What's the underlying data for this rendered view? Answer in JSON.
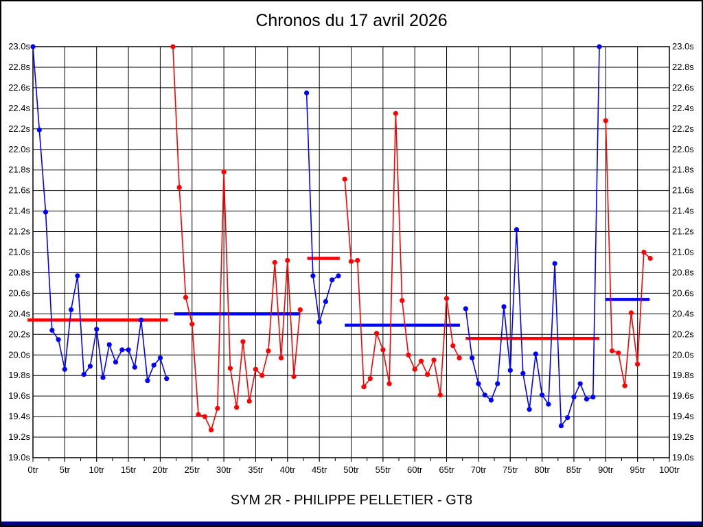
{
  "title": "Chronos du 17 avril 2026",
  "footer": "SYM 2R - PHILIPPE PELLETIER - GT8",
  "colors": {
    "blue_series": "#0000ff",
    "red_series": "#ff0000",
    "grid": "#000000",
    "text": "#000000",
    "bottom_bar": "#000080",
    "background": "#ffffff"
  },
  "chart_data": {
    "type": "line",
    "title": "Chronos du 17 avril 2026",
    "x_unit": "tr",
    "y_unit": "s",
    "xlim": [
      0,
      100
    ],
    "ylim": [
      19.0,
      23.0
    ],
    "grid": true,
    "x_tick_step": 5,
    "x_minor_tick_step": 2.5,
    "y_tick_step": 0.2,
    "x_tick_labels": [
      "0tr",
      "5tr",
      "10tr",
      "15tr",
      "20tr",
      "25tr",
      "30tr",
      "35tr",
      "40tr",
      "45tr",
      "50tr",
      "55tr",
      "60tr",
      "65tr",
      "70tr",
      "75tr",
      "80tr",
      "85tr",
      "90tr",
      "95tr",
      "100tr"
    ],
    "y_tick_labels": [
      "23.0s",
      "22.8s",
      "22.6s",
      "22.4s",
      "22.2s",
      "22.0s",
      "21.8s",
      "21.6s",
      "21.4s",
      "21.2s",
      "21.0s",
      "20.8s",
      "20.6s",
      "20.4s",
      "20.2s",
      "20.0s",
      "19.8s",
      "19.6s",
      "19.4s",
      "19.2s",
      "19.0s"
    ],
    "y_axis_sides": [
      "left",
      "right"
    ],
    "series": [
      {
        "name": "session-1-blue",
        "color": "#0000ff",
        "points": [
          [
            0,
            23.0
          ],
          [
            1,
            22.19
          ],
          [
            2,
            21.39
          ],
          [
            3,
            20.24
          ],
          [
            4,
            20.15
          ],
          [
            5,
            19.86
          ],
          [
            6,
            20.44
          ],
          [
            7,
            20.77
          ],
          [
            8,
            19.81
          ],
          [
            9,
            19.89
          ],
          [
            10,
            20.25
          ],
          [
            11,
            19.78
          ],
          [
            12,
            20.1
          ],
          [
            13,
            19.93
          ],
          [
            14,
            20.05
          ],
          [
            15,
            20.05
          ],
          [
            16,
            19.88
          ],
          [
            17,
            20.34
          ],
          [
            18,
            19.75
          ],
          [
            19,
            19.9
          ],
          [
            20,
            19.97
          ],
          [
            21,
            19.77
          ]
        ]
      },
      {
        "name": "session-2-red",
        "color": "#ff0000",
        "points": [
          [
            22,
            23.0
          ],
          [
            23,
            21.63
          ],
          [
            24,
            20.56
          ],
          [
            25,
            20.3
          ],
          [
            26,
            19.42
          ],
          [
            27,
            19.4
          ],
          [
            28,
            19.27
          ],
          [
            29,
            19.48
          ],
          [
            30,
            21.78
          ],
          [
            31,
            19.87
          ],
          [
            32,
            19.49
          ],
          [
            33,
            20.13
          ],
          [
            34,
            19.55
          ],
          [
            35,
            19.86
          ],
          [
            36,
            19.8
          ],
          [
            37,
            20.04
          ],
          [
            38,
            20.9
          ],
          [
            39,
            19.97
          ],
          [
            40,
            20.92
          ],
          [
            41,
            19.79
          ],
          [
            42,
            20.44
          ]
        ]
      },
      {
        "name": "session-3-blue",
        "color": "#0000ff",
        "points": [
          [
            43,
            22.55
          ],
          [
            44,
            20.77
          ],
          [
            45,
            20.32
          ],
          [
            46,
            20.52
          ],
          [
            47,
            20.73
          ],
          [
            48,
            20.77
          ]
        ]
      },
      {
        "name": "session-4-red",
        "color": "#ff0000",
        "points": [
          [
            49,
            21.71
          ],
          [
            50,
            20.91
          ],
          [
            51,
            20.92
          ],
          [
            52,
            19.69
          ],
          [
            53,
            19.77
          ],
          [
            54,
            20.21
          ],
          [
            55,
            20.05
          ],
          [
            56,
            19.72
          ],
          [
            57,
            22.35
          ],
          [
            58,
            20.53
          ],
          [
            59,
            20.0
          ],
          [
            60,
            19.86
          ],
          [
            61,
            19.94
          ],
          [
            62,
            19.81
          ],
          [
            63,
            19.95
          ],
          [
            64,
            19.61
          ],
          [
            65,
            20.55
          ],
          [
            66,
            20.09
          ],
          [
            67,
            19.97
          ]
        ]
      },
      {
        "name": "session-5-blue",
        "color": "#0000ff",
        "points": [
          [
            68,
            20.45
          ],
          [
            69,
            19.97
          ],
          [
            70,
            19.72
          ],
          [
            71,
            19.61
          ],
          [
            72,
            19.56
          ],
          [
            73,
            19.72
          ],
          [
            74,
            20.47
          ],
          [
            75,
            19.85
          ],
          [
            76,
            21.22
          ],
          [
            77,
            19.82
          ],
          [
            78,
            19.47
          ],
          [
            79,
            20.01
          ],
          [
            80,
            19.61
          ],
          [
            81,
            19.52
          ],
          [
            82,
            20.89
          ],
          [
            83,
            19.31
          ],
          [
            84,
            19.39
          ],
          [
            85,
            19.59
          ],
          [
            86,
            19.72
          ],
          [
            87,
            19.57
          ],
          [
            88,
            19.59
          ],
          [
            89,
            23.0
          ]
        ]
      },
      {
        "name": "session-6-red",
        "color": "#ff0000",
        "points": [
          [
            90,
            22.28
          ],
          [
            91,
            20.04
          ],
          [
            92,
            20.02
          ],
          [
            93,
            19.7
          ],
          [
            94,
            20.41
          ],
          [
            95,
            19.91
          ],
          [
            96,
            21.0
          ],
          [
            97,
            20.94
          ]
        ]
      }
    ],
    "average_lines": [
      {
        "name": "avg-session-1",
        "color": "#ff0000",
        "value": 20.34,
        "x_start": -0.85,
        "x_end": 21.2
      },
      {
        "name": "avg-session-2",
        "color": "#0000ff",
        "value": 20.4,
        "x_start": 22.2,
        "x_end": 42.0
      },
      {
        "name": "avg-session-3",
        "color": "#ff0000",
        "value": 20.94,
        "x_start": 43.1,
        "x_end": 48.2
      },
      {
        "name": "avg-session-4",
        "color": "#0000ff",
        "value": 20.29,
        "x_start": 49.0,
        "x_end": 67.1
      },
      {
        "name": "avg-session-5",
        "color": "#ff0000",
        "value": 20.16,
        "x_start": 68.0,
        "x_end": 89.0
      },
      {
        "name": "avg-session-6",
        "color": "#0000ff",
        "value": 20.54,
        "x_start": 89.9,
        "x_end": 96.9
      }
    ]
  }
}
